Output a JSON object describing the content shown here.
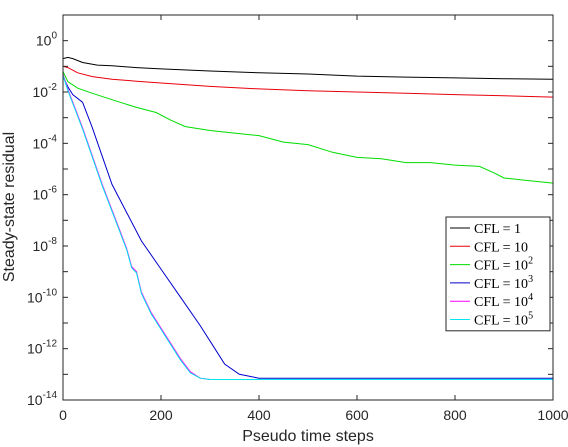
{
  "chart_data": {
    "type": "line",
    "xlabel": "Pseudo time steps",
    "ylabel": "Steady-state residual",
    "xlim": [
      0,
      1000
    ],
    "ylim_log10": [
      -14,
      1
    ],
    "yscale": "log",
    "grid": false,
    "legend_position": "right-middle",
    "x_ticks": [
      {
        "value": 0,
        "label": "0"
      },
      {
        "value": 200,
        "label": "200"
      },
      {
        "value": 400,
        "label": "400"
      },
      {
        "value": 600,
        "label": "600"
      },
      {
        "value": 800,
        "label": "800"
      },
      {
        "value": 1000,
        "label": "1000"
      }
    ],
    "y_ticks": [
      {
        "exp": 0,
        "base": "10",
        "sup": "0"
      },
      {
        "exp": -2,
        "base": "10",
        "sup": "-2"
      },
      {
        "exp": -4,
        "base": "10",
        "sup": "-4"
      },
      {
        "exp": -6,
        "base": "10",
        "sup": "-6"
      },
      {
        "exp": -8,
        "base": "10",
        "sup": "-8"
      },
      {
        "exp": -10,
        "base": "10",
        "sup": "-10"
      },
      {
        "exp": -12,
        "base": "10",
        "sup": "-12"
      },
      {
        "exp": -14,
        "base": "10",
        "sup": "-14"
      }
    ],
    "series": [
      {
        "legend_base": "CFL = 1",
        "legend_sup": "",
        "color": "#000000",
        "points": [
          [
            0,
            -0.7
          ],
          [
            10,
            -0.65
          ],
          [
            20,
            -0.7
          ],
          [
            40,
            -0.85
          ],
          [
            70,
            -0.95
          ],
          [
            100,
            -0.98
          ],
          [
            150,
            -1.05
          ],
          [
            200,
            -1.1
          ],
          [
            300,
            -1.18
          ],
          [
            400,
            -1.25
          ],
          [
            500,
            -1.3
          ],
          [
            600,
            -1.38
          ],
          [
            700,
            -1.42
          ],
          [
            800,
            -1.45
          ],
          [
            900,
            -1.48
          ],
          [
            1000,
            -1.5
          ]
        ]
      },
      {
        "legend_base": "CFL = 10",
        "legend_sup": "",
        "color": "#e8000b",
        "points": [
          [
            0,
            -1.0
          ],
          [
            10,
            -1.05
          ],
          [
            30,
            -1.25
          ],
          [
            60,
            -1.4
          ],
          [
            100,
            -1.5
          ],
          [
            150,
            -1.58
          ],
          [
            200,
            -1.65
          ],
          [
            300,
            -1.78
          ],
          [
            400,
            -1.88
          ],
          [
            500,
            -1.95
          ],
          [
            600,
            -2.0
          ],
          [
            700,
            -2.05
          ],
          [
            800,
            -2.1
          ],
          [
            900,
            -2.15
          ],
          [
            1000,
            -2.2
          ]
        ]
      },
      {
        "legend_base": "CFL = 10",
        "legend_sup": "2",
        "color": "#00dd00",
        "points": [
          [
            0,
            -1.2
          ],
          [
            10,
            -1.6
          ],
          [
            30,
            -1.85
          ],
          [
            60,
            -2.05
          ],
          [
            100,
            -2.3
          ],
          [
            150,
            -2.6
          ],
          [
            190,
            -2.8
          ],
          [
            220,
            -3.1
          ],
          [
            250,
            -3.35
          ],
          [
            300,
            -3.5
          ],
          [
            350,
            -3.6
          ],
          [
            400,
            -3.7
          ],
          [
            450,
            -3.95
          ],
          [
            500,
            -4.05
          ],
          [
            550,
            -4.35
          ],
          [
            600,
            -4.55
          ],
          [
            650,
            -4.6
          ],
          [
            700,
            -4.75
          ],
          [
            750,
            -4.75
          ],
          [
            800,
            -4.85
          ],
          [
            850,
            -4.9
          ],
          [
            880,
            -5.15
          ],
          [
            900,
            -5.35
          ],
          [
            950,
            -5.45
          ],
          [
            1000,
            -5.55
          ]
        ]
      },
      {
        "legend_base": "CFL = 10",
        "legend_sup": "3",
        "color": "#0000cc",
        "points": [
          [
            0,
            -1.4
          ],
          [
            10,
            -1.8
          ],
          [
            20,
            -2.1
          ],
          [
            40,
            -2.4
          ],
          [
            60,
            -3.4
          ],
          [
            80,
            -4.5
          ],
          [
            100,
            -5.6
          ],
          [
            130,
            -6.7
          ],
          [
            160,
            -7.8
          ],
          [
            200,
            -8.9
          ],
          [
            240,
            -10.0
          ],
          [
            280,
            -11.1
          ],
          [
            310,
            -12.0
          ],
          [
            330,
            -12.6
          ],
          [
            360,
            -13.0
          ],
          [
            400,
            -13.15
          ],
          [
            500,
            -13.15
          ],
          [
            600,
            -13.15
          ],
          [
            700,
            -13.15
          ],
          [
            800,
            -13.15
          ],
          [
            900,
            -13.15
          ],
          [
            1000,
            -13.15
          ]
        ]
      },
      {
        "legend_base": "CFL = 10",
        "legend_sup": "4",
        "color": "#ff00ff",
        "points": [
          [
            0,
            -1.3
          ],
          [
            10,
            -1.9
          ],
          [
            20,
            -2.4
          ],
          [
            40,
            -3.4
          ],
          [
            60,
            -4.5
          ],
          [
            80,
            -5.6
          ],
          [
            100,
            -6.6
          ],
          [
            120,
            -7.6
          ],
          [
            130,
            -8.1
          ],
          [
            140,
            -8.8
          ],
          [
            150,
            -9.0
          ],
          [
            160,
            -9.8
          ],
          [
            180,
            -10.6
          ],
          [
            200,
            -11.2
          ],
          [
            220,
            -11.8
          ],
          [
            240,
            -12.4
          ],
          [
            260,
            -12.9
          ],
          [
            280,
            -13.15
          ],
          [
            300,
            -13.2
          ],
          [
            400,
            -13.2
          ],
          [
            500,
            -13.2
          ],
          [
            600,
            -13.2
          ],
          [
            700,
            -13.2
          ],
          [
            800,
            -13.2
          ],
          [
            900,
            -13.2
          ],
          [
            1000,
            -13.2
          ]
        ]
      },
      {
        "legend_base": "CFL = 10",
        "legend_sup": "5",
        "color": "#00e5ee",
        "points": [
          [
            0,
            -1.35
          ],
          [
            10,
            -1.95
          ],
          [
            20,
            -2.45
          ],
          [
            40,
            -3.45
          ],
          [
            60,
            -4.55
          ],
          [
            80,
            -5.65
          ],
          [
            100,
            -6.65
          ],
          [
            120,
            -7.65
          ],
          [
            130,
            -8.15
          ],
          [
            140,
            -8.85
          ],
          [
            150,
            -9.05
          ],
          [
            160,
            -9.85
          ],
          [
            180,
            -10.65
          ],
          [
            200,
            -11.25
          ],
          [
            220,
            -11.85
          ],
          [
            240,
            -12.45
          ],
          [
            260,
            -12.95
          ],
          [
            280,
            -13.15
          ],
          [
            300,
            -13.2
          ],
          [
            400,
            -13.2
          ],
          [
            500,
            -13.2
          ],
          [
            600,
            -13.2
          ],
          [
            700,
            -13.2
          ],
          [
            800,
            -13.2
          ],
          [
            900,
            -13.2
          ],
          [
            1000,
            -13.2
          ]
        ]
      }
    ]
  }
}
